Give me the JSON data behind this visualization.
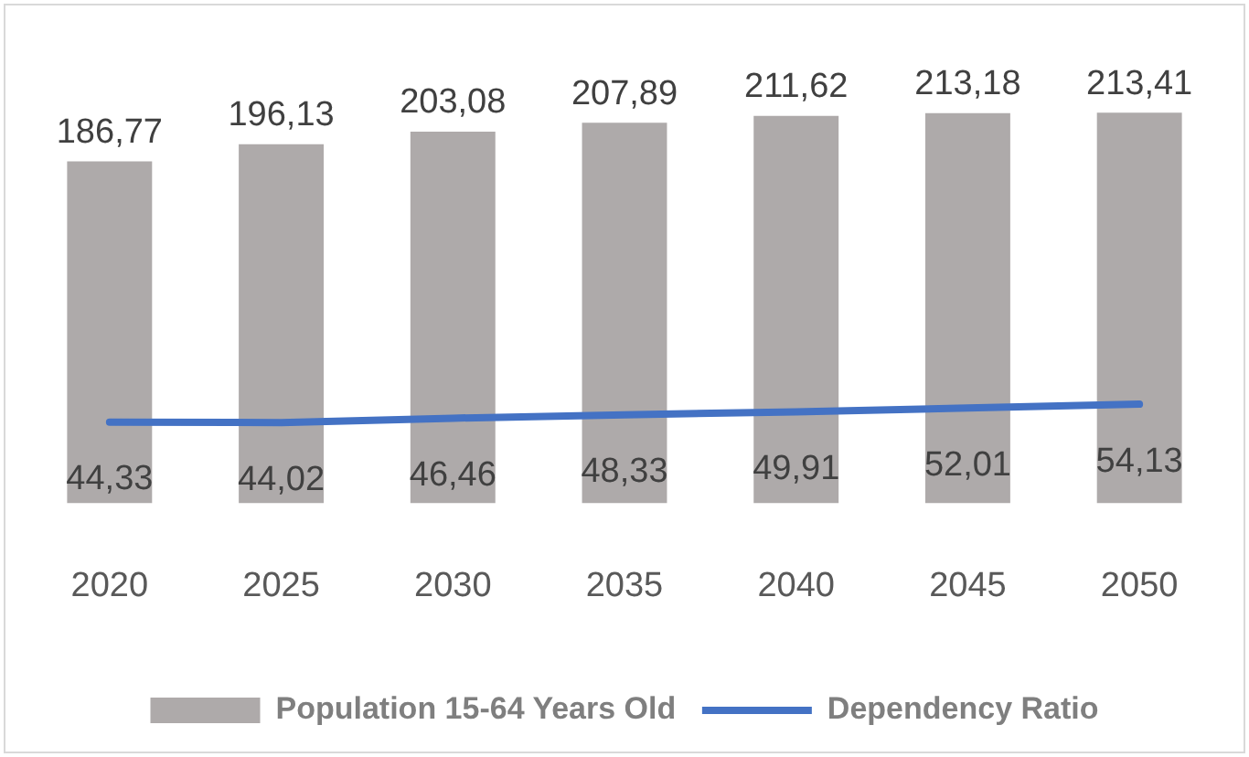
{
  "chart_data": {
    "type": "bar",
    "categories": [
      "2020",
      "2025",
      "2030",
      "2035",
      "2040",
      "2045",
      "2050"
    ],
    "series": [
      {
        "name": "Population 15-64 Years Old",
        "color": "#aeaaaa",
        "values": [
          186.77,
          196.13,
          203.08,
          207.89,
          211.62,
          213.18,
          213.41
        ],
        "value_labels": [
          "186,77",
          "196,13",
          "203,08",
          "207,89",
          "211,62",
          "213,18",
          "213,41"
        ]
      },
      {
        "name": "Dependency Ratio",
        "type": "line",
        "color": "#4472c4",
        "values": [
          44.33,
          44.02,
          46.46,
          48.33,
          49.91,
          52.01,
          54.13
        ],
        "value_labels": [
          "44,33",
          "44,02",
          "46,46",
          "48,33",
          "49,91",
          "52,01",
          "54,13"
        ],
        "marker": "none"
      }
    ],
    "legend": "bottom",
    "grid": false
  }
}
